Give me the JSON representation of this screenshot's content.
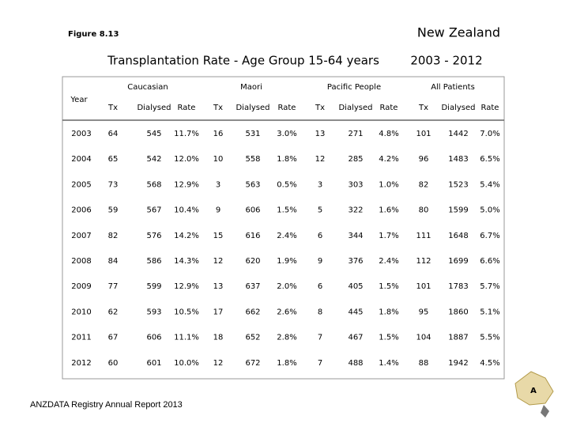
{
  "header": {
    "figure": "Figure 8.13",
    "country": "New Zealand",
    "title": "Transplantation Rate - Age Group 15-64 years",
    "period": "2003 - 2012"
  },
  "table": {
    "year_header": "Year",
    "groups": [
      {
        "name": "Caucasian",
        "columns": [
          "Tx",
          "Dialysed",
          "Rate"
        ]
      },
      {
        "name": "Maori",
        "columns": [
          "Tx",
          "Dialysed",
          "Rate"
        ]
      },
      {
        "name": "Pacific People",
        "columns": [
          "Tx",
          "Dialysed",
          "Rate"
        ]
      },
      {
        "name": "All Patients",
        "columns": [
          "Tx",
          "Dialysed",
          "Rate"
        ]
      }
    ],
    "rows": [
      [
        "2003",
        "64",
        "545",
        "11.7%",
        "16",
        "531",
        "3.0%",
        "13",
        "271",
        "4.8%",
        "101",
        "1442",
        "7.0%"
      ],
      [
        "2004",
        "65",
        "542",
        "12.0%",
        "10",
        "558",
        "1.8%",
        "12",
        "285",
        "4.2%",
        "96",
        "1483",
        "6.5%"
      ],
      [
        "2005",
        "73",
        "568",
        "12.9%",
        "3",
        "563",
        "0.5%",
        "3",
        "303",
        "1.0%",
        "82",
        "1523",
        "5.4%"
      ],
      [
        "2006",
        "59",
        "567",
        "10.4%",
        "9",
        "606",
        "1.5%",
        "5",
        "322",
        "1.6%",
        "80",
        "1599",
        "5.0%"
      ],
      [
        "2007",
        "82",
        "576",
        "14.2%",
        "15",
        "616",
        "2.4%",
        "6",
        "344",
        "1.7%",
        "111",
        "1648",
        "6.7%"
      ],
      [
        "2008",
        "84",
        "586",
        "14.3%",
        "12",
        "620",
        "1.9%",
        "9",
        "376",
        "2.4%",
        "112",
        "1699",
        "6.6%"
      ],
      [
        "2009",
        "77",
        "599",
        "12.9%",
        "13",
        "637",
        "2.0%",
        "6",
        "405",
        "1.5%",
        "101",
        "1783",
        "5.7%"
      ],
      [
        "2010",
        "62",
        "593",
        "10.5%",
        "17",
        "662",
        "2.6%",
        "8",
        "445",
        "1.8%",
        "95",
        "1860",
        "5.1%"
      ],
      [
        "2011",
        "67",
        "606",
        "11.1%",
        "18",
        "652",
        "2.8%",
        "7",
        "467",
        "1.5%",
        "104",
        "1887",
        "5.5%"
      ],
      [
        "2012",
        "60",
        "601",
        "10.0%",
        "12",
        "672",
        "1.8%",
        "7",
        "488",
        "1.4%",
        "88",
        "1942",
        "4.5%"
      ]
    ]
  },
  "footer": "ANZDATA Registry Annual Report 2013"
}
